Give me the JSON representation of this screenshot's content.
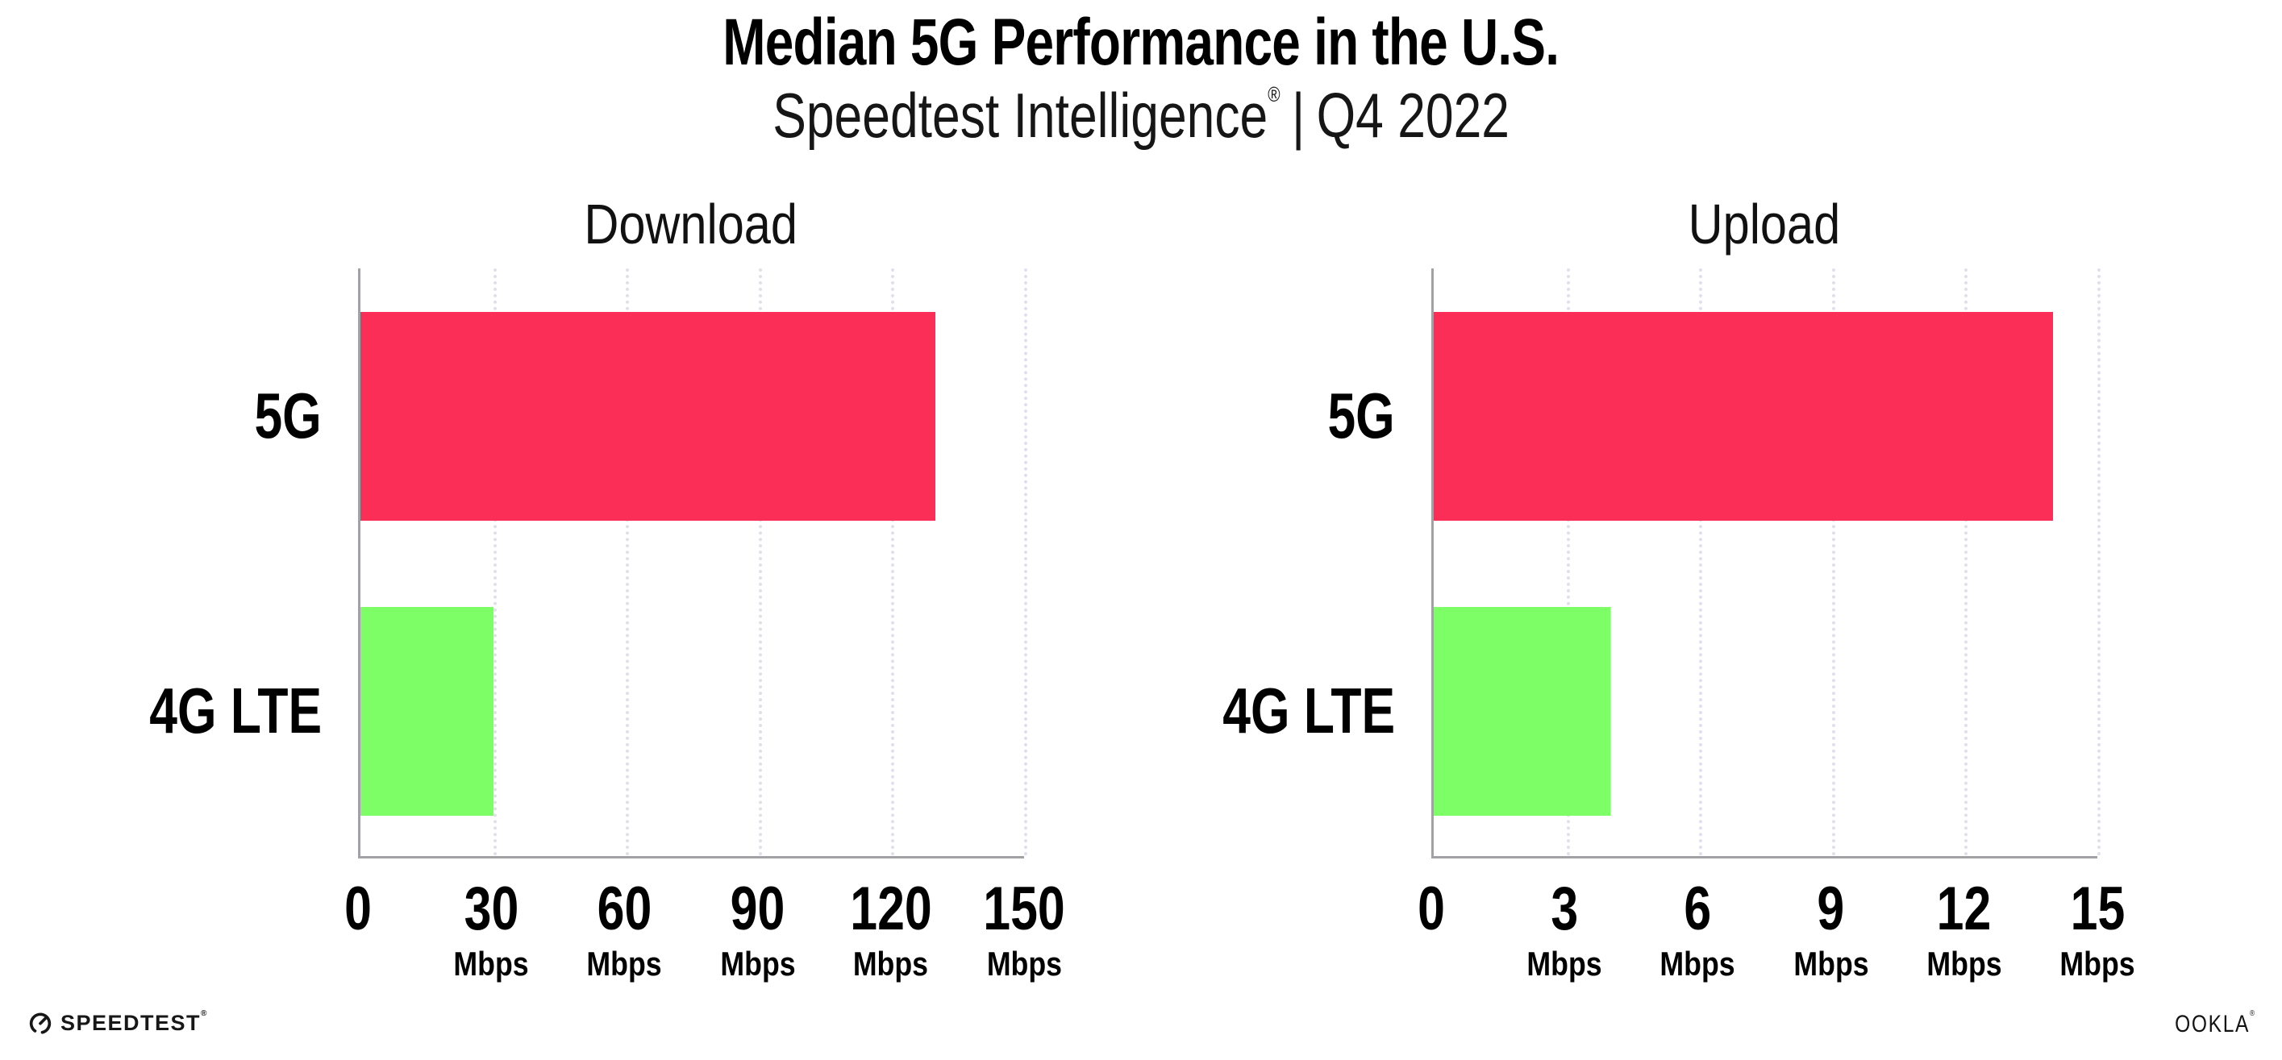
{
  "header": {
    "title": "Median 5G Performance in the U.S.",
    "subtitle_brand": "Speedtest Intelligence",
    "subtitle_reg": "®",
    "subtitle_divider": "|",
    "subtitle_period": "Q4 2022"
  },
  "chart_data": [
    {
      "type": "bar",
      "orientation": "horizontal",
      "title": "Download",
      "categories": [
        "5G",
        "4G LTE"
      ],
      "values": [
        130,
        30
      ],
      "unit": "Mbps",
      "xlim": [
        0,
        150
      ],
      "xticks": [
        0,
        30,
        60,
        90,
        120,
        150
      ],
      "bar_colors": [
        "#fb2e57",
        "#7dfd66"
      ],
      "grid": "dotted-vertical",
      "legend": "none"
    },
    {
      "type": "bar",
      "orientation": "horizontal",
      "title": "Upload",
      "categories": [
        "5G",
        "4G LTE"
      ],
      "values": [
        14,
        4
      ],
      "unit": "Mbps",
      "xlim": [
        0,
        15
      ],
      "xticks": [
        0,
        3,
        6,
        9,
        12,
        15
      ],
      "bar_colors": [
        "#fb2e57",
        "#7dfd66"
      ],
      "grid": "dotted-vertical",
      "legend": "none"
    }
  ],
  "footer": {
    "speedtest_wordmark": "SPEEDTEST",
    "speedtest_reg": "®",
    "speedtest_icon": "gauge-icon",
    "ookla_wordmark": "OOKLA",
    "ookla_reg": "®"
  },
  "colors": {
    "bar_5g": "#fb2e57",
    "bar_4g_lte": "#7dfd66",
    "gridline": "#e0e0ec",
    "axis": "#a2a2a6",
    "text": "#000000"
  }
}
